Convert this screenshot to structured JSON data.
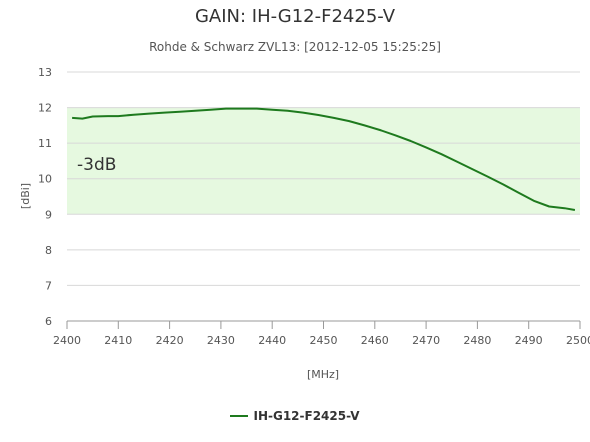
{
  "chart_data": {
    "type": "line",
    "title": "GAIN: IH-G12-F2425-V",
    "subtitle": "Rohde & Schwarz ZVL13: [2012-12-05 15:25:25]",
    "xlabel": "[MHz]",
    "ylabel": "[dBi]",
    "xlim": [
      2400,
      2500
    ],
    "ylim": [
      6,
      13
    ],
    "x_ticks": [
      2400,
      2410,
      2420,
      2430,
      2440,
      2450,
      2460,
      2470,
      2480,
      2490,
      2500
    ],
    "y_ticks": [
      6,
      7,
      8,
      9,
      10,
      11,
      12,
      13
    ],
    "grid": true,
    "band": {
      "from": 9,
      "to": 12,
      "label": "-3dB",
      "color": "#e6f9e0"
    },
    "colors": {
      "series": "#1e7a1e",
      "grid": "#d8d8d8",
      "axis": "#999999"
    },
    "legend_position": "bottom",
    "series": [
      {
        "name": "IH-G12-F2425-V",
        "x": [
          2401,
          2403,
          2405,
          2408,
          2410,
          2413,
          2416,
          2419,
          2422,
          2425,
          2428,
          2431,
          2434,
          2437,
          2440,
          2443,
          2446,
          2449,
          2452,
          2455,
          2458,
          2461,
          2464,
          2467,
          2470,
          2473,
          2476,
          2479,
          2482,
          2485,
          2488,
          2491,
          2494,
          2497,
          2499
        ],
        "y": [
          11.71,
          11.69,
          11.75,
          11.76,
          11.76,
          11.8,
          11.83,
          11.86,
          11.88,
          11.91,
          11.94,
          11.97,
          11.97,
          11.97,
          11.94,
          11.91,
          11.86,
          11.79,
          11.71,
          11.62,
          11.5,
          11.37,
          11.22,
          11.06,
          10.88,
          10.69,
          10.48,
          10.27,
          10.06,
          9.84,
          9.61,
          9.38,
          9.22,
          9.17,
          9.12
        ]
      }
    ]
  }
}
